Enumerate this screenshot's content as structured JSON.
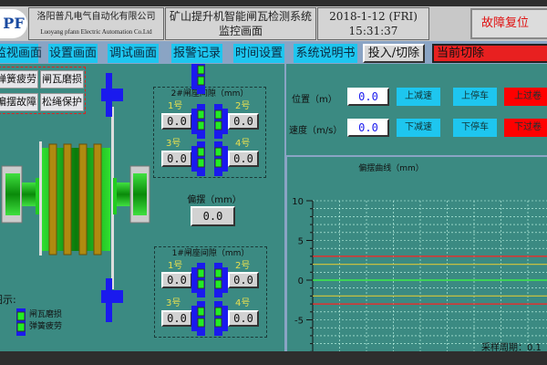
{
  "header": {
    "company_cn": "洛阳普凡电气自动化有限公司",
    "company_en": "Luoyang pfann Electric Automation Co.Ltd",
    "logo_text": "PF",
    "title_line1": "矿山提升机智能闸瓦检测系统",
    "title_line2": "监控画面",
    "date": "2018-1-12 (FRI)",
    "time": "15:31:37",
    "fault_reset": "故障复位"
  },
  "nav": {
    "items": [
      "监视画面",
      "设置画面",
      "调试画面",
      "报警记录",
      "时间设置",
      "系统说明书"
    ],
    "toggle": "投入/切除",
    "current_cut": "当前切除"
  },
  "alarms": [
    "弹簧疲劳",
    "闸瓦磨损",
    "偏摆故障",
    "松绳保护"
  ],
  "gap2": {
    "title": "2#闸座间隙（mm）",
    "labels": [
      "1号",
      "2号",
      "3号",
      "4号"
    ],
    "values": [
      "0.0",
      "0.0",
      "0.0",
      "0.0"
    ]
  },
  "gap1": {
    "title": "1#闸座间隙（mm）",
    "labels": [
      "1号",
      "2号",
      "3号",
      "4号"
    ],
    "values": [
      "0.0",
      "0.0",
      "0.0",
      "0.0"
    ]
  },
  "swing": {
    "label": "偏摆（mm）",
    "value": "0.0"
  },
  "legend": {
    "title": "图示:",
    "items": [
      "闸瓦磨损",
      "弹簧疲劳"
    ]
  },
  "status": {
    "position_label": "位置（m）",
    "position_value": "0.0",
    "speed_label": "速度（m/s）",
    "speed_value": "0.0",
    "upper": [
      "上减速",
      "上停车",
      "上过卷"
    ],
    "lower": [
      "下减速",
      "下停车",
      "下过卷"
    ]
  },
  "colors": {
    "teal": "#3b8a82",
    "cyan": "#1ec6ef",
    "red": "#ff0000"
  },
  "chart_data": {
    "type": "line",
    "title": "偏摆曲线（mm）",
    "ylim": [
      -10,
      10
    ],
    "yticks": [
      "10",
      "5",
      "0",
      "-5",
      "-10"
    ],
    "grid": true,
    "footer": "采样周期：0.1",
    "series": [
      {
        "color": "#ff2020",
        "values": [
          3
        ]
      },
      {
        "color": "#c8c040",
        "values": [
          2
        ]
      },
      {
        "color": "#40ff40",
        "values": [
          0
        ]
      },
      {
        "color": "#c8c040",
        "values": [
          -2
        ]
      },
      {
        "color": "#ff2020",
        "values": [
          -3
        ]
      }
    ]
  }
}
